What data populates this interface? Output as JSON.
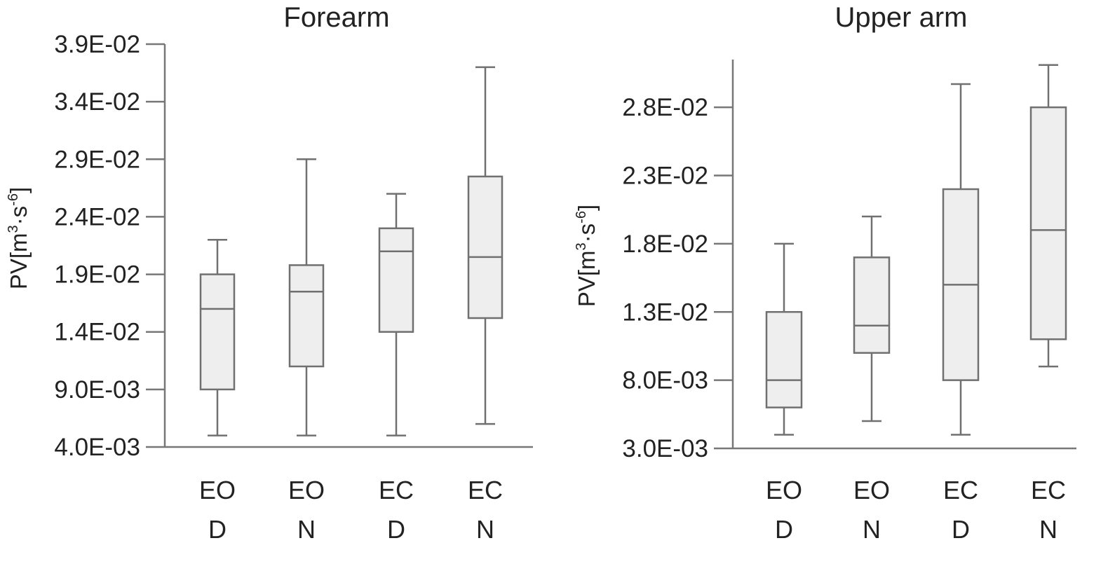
{
  "chart_data": [
    {
      "type": "box",
      "title": "Forearm",
      "ylabel": "PV[m3·s-6]",
      "ylabel_parts": {
        "base": "PV[m",
        "sup1": "3",
        "mid": "·s",
        "sup2": "-6",
        "end": "]"
      },
      "ylim": [
        0.004,
        0.039
      ],
      "yticks": [
        {
          "value": 0.004,
          "label": "4.0E-03"
        },
        {
          "value": 0.009,
          "label": "9.0E-03"
        },
        {
          "value": 0.014,
          "label": "1.4E-02"
        },
        {
          "value": 0.019,
          "label": "1.9E-02"
        },
        {
          "value": 0.024,
          "label": "2.4E-02"
        },
        {
          "value": 0.029,
          "label": "2.9E-02"
        },
        {
          "value": 0.034,
          "label": "3.4E-02"
        },
        {
          "value": 0.039,
          "label": "3.9E-02"
        }
      ],
      "categories": [
        {
          "line1": "EO",
          "line2": "D"
        },
        {
          "line1": "EO",
          "line2": "N"
        },
        {
          "line1": "EC",
          "line2": "D"
        },
        {
          "line1": "EC",
          "line2": "N"
        }
      ],
      "boxes": [
        {
          "min": 0.005,
          "q1": 0.009,
          "median": 0.016,
          "q3": 0.019,
          "max": 0.022
        },
        {
          "min": 0.005,
          "q1": 0.011,
          "median": 0.0175,
          "q3": 0.0198,
          "max": 0.029
        },
        {
          "min": 0.005,
          "q1": 0.014,
          "median": 0.021,
          "q3": 0.023,
          "max": 0.026
        },
        {
          "min": 0.006,
          "q1": 0.0152,
          "median": 0.0205,
          "q3": 0.0275,
          "max": 0.037
        }
      ]
    },
    {
      "type": "box",
      "title": "Upper arm",
      "ylabel": "PV[m3·s-6]",
      "ylabel_parts": {
        "base": "PV[m",
        "sup1": "3",
        "mid": "·s",
        "sup2": "-6",
        "end": "]"
      },
      "ylim": [
        0.003,
        0.0315
      ],
      "yticks": [
        {
          "value": 0.003,
          "label": "3.0E-03"
        },
        {
          "value": 0.008,
          "label": "8.0E-03"
        },
        {
          "value": 0.013,
          "label": "1.3E-02"
        },
        {
          "value": 0.018,
          "label": "1.8E-02"
        },
        {
          "value": 0.023,
          "label": "2.3E-02"
        },
        {
          "value": 0.028,
          "label": "2.8E-02"
        }
      ],
      "categories": [
        {
          "line1": "EO",
          "line2": "D"
        },
        {
          "line1": "EO",
          "line2": "N"
        },
        {
          "line1": "EC",
          "line2": "D"
        },
        {
          "line1": "EC",
          "line2": "N"
        }
      ],
      "boxes": [
        {
          "min": 0.004,
          "q1": 0.006,
          "median": 0.008,
          "q3": 0.013,
          "max": 0.018
        },
        {
          "min": 0.005,
          "q1": 0.01,
          "median": 0.012,
          "q3": 0.017,
          "max": 0.02
        },
        {
          "min": 0.004,
          "q1": 0.008,
          "median": 0.015,
          "q3": 0.022,
          "max": 0.0297
        },
        {
          "min": 0.009,
          "q1": 0.011,
          "median": 0.019,
          "q3": 0.028,
          "max": 0.0311
        }
      ]
    }
  ]
}
